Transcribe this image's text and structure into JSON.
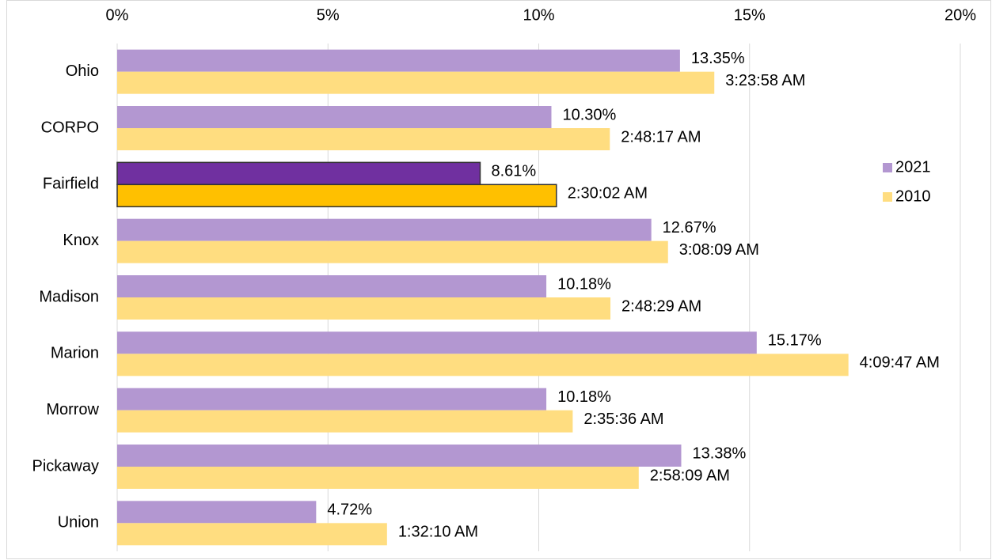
{
  "chart_data": {
    "type": "hbar",
    "categories": [
      "Ohio",
      "CORPO",
      "Fairfield",
      "Knox",
      "Madison",
      "Marion",
      "Morrow",
      "Pickaway",
      "Union"
    ],
    "series": [
      {
        "name": "2021",
        "color": "#b397d1",
        "colors": [
          "#b397d1",
          "#b397d1",
          "#7030a0",
          "#b397d1",
          "#b397d1",
          "#b397d1",
          "#b397d1",
          "#b397d1",
          "#b397d1"
        ],
        "values": [
          13.35,
          10.3,
          8.61,
          12.67,
          10.18,
          15.17,
          10.18,
          13.38,
          4.72
        ],
        "value_labels": [
          "13.35%",
          "10.30%",
          "8.61%",
          "12.67%",
          "10.18%",
          "15.17%",
          "10.18%",
          "13.38%",
          "4.72%"
        ]
      },
      {
        "name": "2010",
        "color": "#ffdd80",
        "colors": [
          "#ffdd80",
          "#ffdd80",
          "#ffc000",
          "#ffdd80",
          "#ffdd80",
          "#ffdd80",
          "#ffdd80",
          "#ffdd80",
          "#ffdd80"
        ],
        "values": [
          14.16435,
          11.68634,
          10.41898,
          13.06597,
          11.70023,
          17.34606,
          10.80556,
          12.37153,
          6.40046
        ],
        "value_labels": [
          "3:23:58 AM",
          "2:48:17 AM",
          "2:30:02 AM",
          "3:08:09 AM",
          "2:48:29 AM",
          "4:09:47 AM",
          "2:35:36 AM",
          "2:58:09 AM",
          "1:32:10 AM"
        ]
      }
    ],
    "xlim": [
      0,
      20
    ],
    "xticks": [
      {
        "value": 0,
        "label": "0%"
      },
      {
        "value": 5,
        "label": "5%"
      },
      {
        "value": 10,
        "label": "10%"
      },
      {
        "value": 15,
        "label": "15%"
      },
      {
        "value": 20,
        "label": "20%"
      }
    ],
    "grid": true,
    "legend": "right"
  }
}
